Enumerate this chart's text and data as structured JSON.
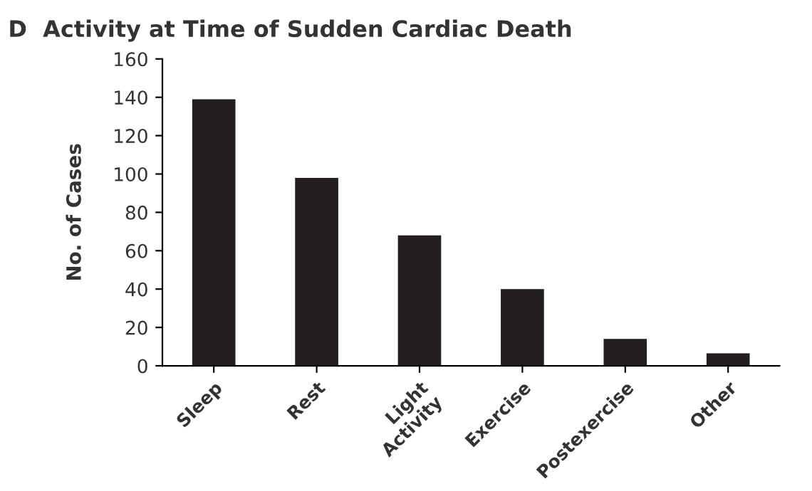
{
  "chart_data": {
    "type": "bar",
    "title": "D  Activity at Time of Sudden Cardiac Death",
    "ylabel": "No. of Cases",
    "categories": [
      "Sleep",
      "Rest",
      "Light\nActivity",
      "Exercise",
      "Postexercise",
      "Other"
    ],
    "values": [
      139,
      98,
      68,
      40,
      14,
      6.5
    ],
    "color": "#231f20",
    "ylim": [
      0,
      160
    ],
    "yticks": [
      0,
      20,
      40,
      60,
      80,
      100,
      120,
      140,
      160
    ],
    "grid": false
  }
}
